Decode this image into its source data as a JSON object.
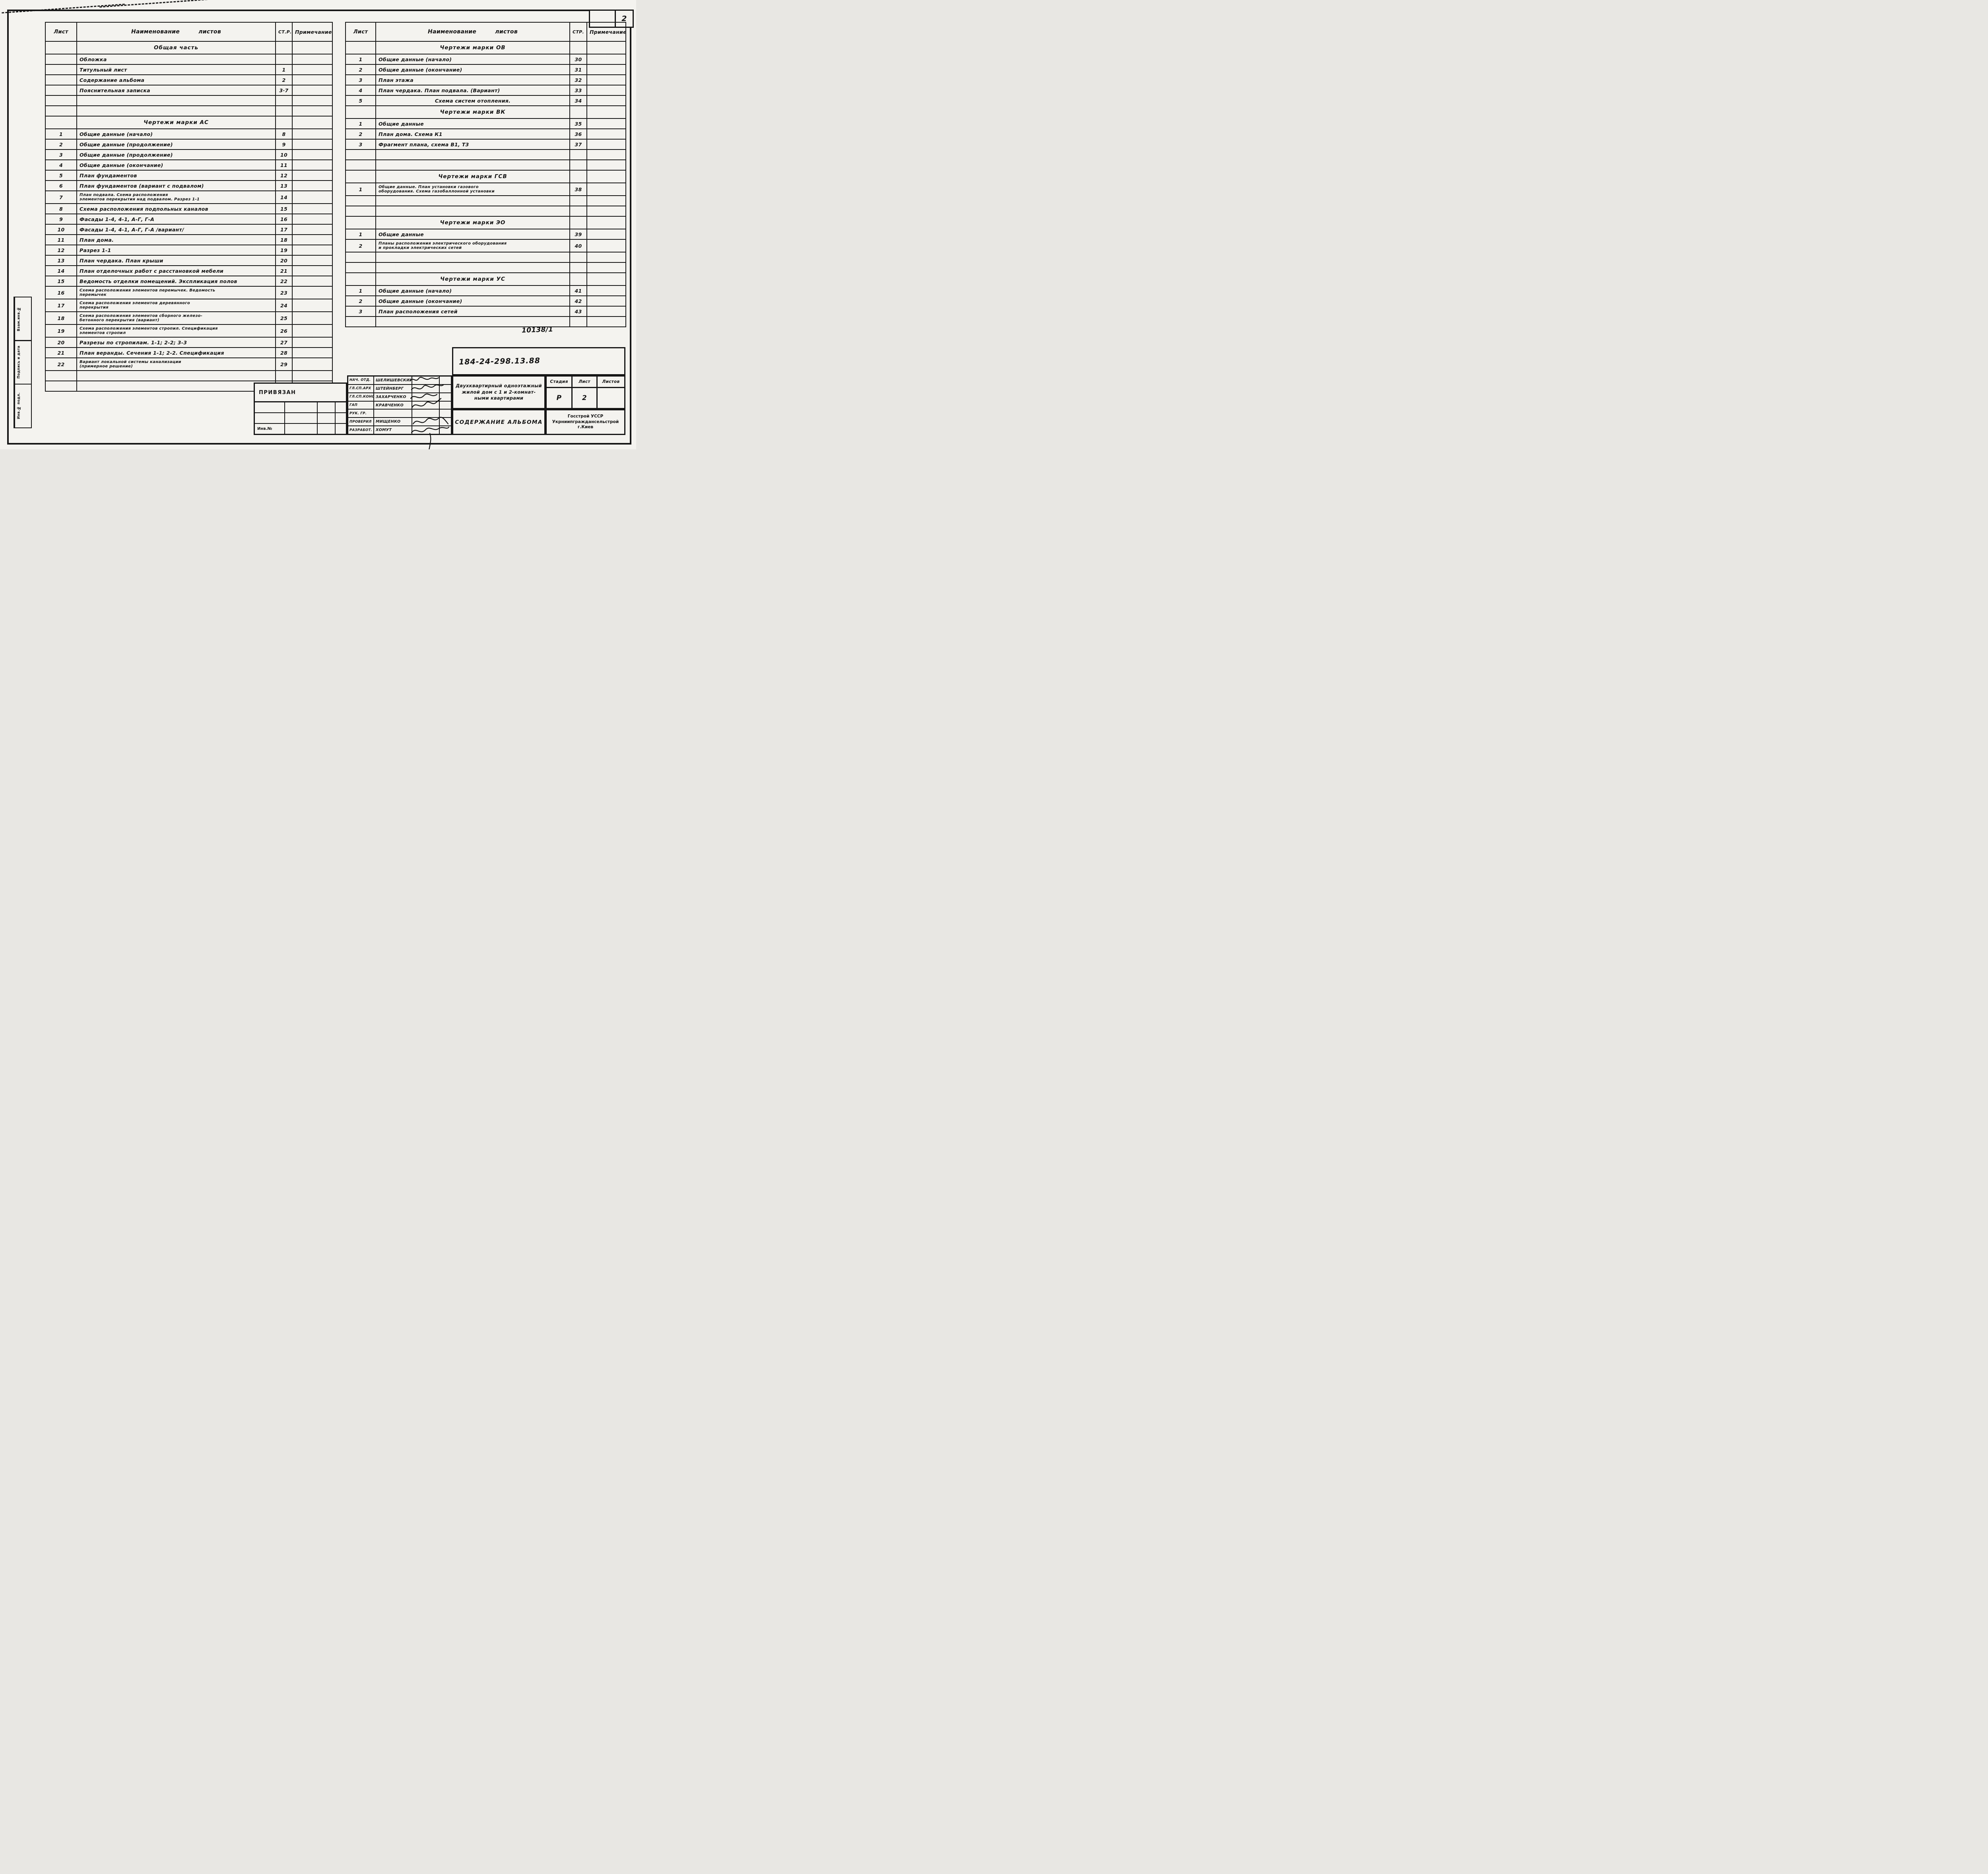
{
  "page": {
    "corner_number": "2",
    "stamp_code": "10138/1"
  },
  "left_table": {
    "header": {
      "sheet": "Лист",
      "name": "Наименование листов",
      "page": "СТ.Р.",
      "note": "Примечание"
    },
    "rows": [
      {
        "t": "sec",
        "name": "Общая часть"
      },
      {
        "t": "r",
        "num": "",
        "name": [
          "Обложка"
        ],
        "page": ""
      },
      {
        "t": "r",
        "num": "",
        "name": [
          "Титульный лист"
        ],
        "page": "1"
      },
      {
        "t": "r",
        "num": "",
        "name": [
          "Содержание альбома"
        ],
        "page": "2"
      },
      {
        "t": "r",
        "num": "",
        "name": [
          "Пояснительная записка"
        ],
        "page": "3·7"
      },
      {
        "t": "e"
      },
      {
        "t": "e"
      },
      {
        "t": "sec",
        "name": "Чертежи марки АС"
      },
      {
        "t": "r",
        "num": "1",
        "name": [
          "Общие данные (начало)"
        ],
        "page": "8"
      },
      {
        "t": "r",
        "num": "2",
        "name": [
          "Общие данные (продолжение)"
        ],
        "page": "9"
      },
      {
        "t": "r",
        "num": "3",
        "name": [
          "Общие данные (продолжение)"
        ],
        "page": "10"
      },
      {
        "t": "r",
        "num": "4",
        "name": [
          "Общие данные (окончание)"
        ],
        "page": "11"
      },
      {
        "t": "r",
        "num": "5",
        "name": [
          "План фундаментов"
        ],
        "page": "12"
      },
      {
        "t": "r",
        "num": "6",
        "name": [
          "План фундаментов (вариант с подвалом)"
        ],
        "page": "13"
      },
      {
        "t": "r2",
        "num": "7",
        "name": [
          "План подвала.  Схема расположения",
          "элементов перекрытия над подвалом. Разрез 1-1"
        ],
        "page": "14"
      },
      {
        "t": "r",
        "num": "8",
        "name": [
          "Схема расположения подпольных каналов"
        ],
        "page": "15"
      },
      {
        "t": "r",
        "num": "9",
        "name": [
          "Фасады 1-4, 4-1, А-Г, Г-А"
        ],
        "page": "16"
      },
      {
        "t": "r",
        "num": "10",
        "name": [
          "Фасады 1-4, 4-1, А-Г, Г-А  /вариант/"
        ],
        "page": "17"
      },
      {
        "t": "r",
        "num": "11",
        "name": [
          "План дома."
        ],
        "page": "18"
      },
      {
        "t": "r",
        "num": "12",
        "name": [
          "Разрез 1-1"
        ],
        "page": "19"
      },
      {
        "t": "r",
        "num": "13",
        "name": [
          "План чердака.  План крыши"
        ],
        "page": "20"
      },
      {
        "t": "r",
        "num": "14",
        "name": [
          "План отделочных работ с расстановкой мебели"
        ],
        "page": "21"
      },
      {
        "t": "r",
        "num": "15",
        "name": [
          "Ведомость отделки помещений. Экспликация полов"
        ],
        "page": "22"
      },
      {
        "t": "r2",
        "num": "16",
        "name": [
          "Схема расположения элементов перемычек. Ведомость",
          "перемычек"
        ],
        "page": "23"
      },
      {
        "t": "r2",
        "num": "17",
        "name": [
          "Схема расположения элементов деревянного",
          "перекрытия"
        ],
        "page": "24"
      },
      {
        "t": "r2",
        "num": "18",
        "name": [
          "Схема расположения элементов сборного железо-",
          "бетонного перекрытия (вариант)"
        ],
        "page": "25"
      },
      {
        "t": "r2",
        "num": "19",
        "name": [
          "Схема расположения элементов стропил. Спецификация",
          "элементов стропил"
        ],
        "page": "26"
      },
      {
        "t": "r",
        "num": "20",
        "name": [
          "Разрезы по стропилам. 1-1; 2-2; 3-3"
        ],
        "page": "27"
      },
      {
        "t": "r",
        "num": "21",
        "name": [
          "План веранды. Сечения 1-1; 2-2.   Спецификация"
        ],
        "page": "28"
      },
      {
        "t": "r2",
        "num": "22",
        "name": [
          "Вариант локальной системы канализации",
          "(примерное решение)"
        ],
        "page": "29"
      },
      {
        "t": "e"
      },
      {
        "t": "e"
      }
    ]
  },
  "right_table": {
    "header": {
      "sheet": "Лист",
      "name": "Наименование листов",
      "page": "СТР.",
      "note": "Примечание"
    },
    "rows": [
      {
        "t": "sec",
        "name": "Чертежи марки ОВ"
      },
      {
        "t": "r",
        "num": "1",
        "name": [
          "Общие данные (начало)"
        ],
        "page": "30"
      },
      {
        "t": "r",
        "num": "2",
        "name": [
          "Общие данные (окончание)"
        ],
        "page": "31"
      },
      {
        "t": "r",
        "num": "3",
        "name": [
          "План этажа"
        ],
        "page": "32"
      },
      {
        "t": "r",
        "num": "4",
        "name": [
          "План чердака. План подвала. (Вариант)"
        ],
        "page": "33"
      },
      {
        "t": "rc",
        "num": "5",
        "name": [
          "Схема систем отопления."
        ],
        "page": "34"
      },
      {
        "t": "sec",
        "name": "Чертежи марки ВК"
      },
      {
        "t": "r",
        "num": "1",
        "name": [
          "Общие данные"
        ],
        "page": "35"
      },
      {
        "t": "r",
        "num": "2",
        "name": [
          "План дома. Схема К1"
        ],
        "page": "36"
      },
      {
        "t": "r",
        "num": "3",
        "name": [
          "Фрагмент плана, схема В1, Т3"
        ],
        "page": "37"
      },
      {
        "t": "e"
      },
      {
        "t": "e"
      },
      {
        "t": "sec",
        "name": "Чертежи марки ГСВ"
      },
      {
        "t": "r2",
        "num": "1",
        "name": [
          "Общие данные. План установки газового",
          "оборудования. Схема газобаллонной установки"
        ],
        "page": "38"
      },
      {
        "t": "e"
      },
      {
        "t": "e"
      },
      {
        "t": "sec",
        "name": "Чертежи марки ЭО"
      },
      {
        "t": "r",
        "num": "1",
        "name": [
          "Общие данные"
        ],
        "page": "39"
      },
      {
        "t": "r2",
        "num": "2",
        "name": [
          "Планы расположения электрического оборудования",
          "и прокладки электрических сетей"
        ],
        "page": "40"
      },
      {
        "t": "e"
      },
      {
        "t": "e"
      },
      {
        "t": "sec",
        "name": "Чертежи марки УС"
      },
      {
        "t": "r",
        "num": "1",
        "name": [
          "Общие данные (начало)"
        ],
        "page": "41"
      },
      {
        "t": "r",
        "num": "2",
        "name": [
          "Общие данные (окончание)"
        ],
        "page": "42"
      },
      {
        "t": "r",
        "num": "3",
        "name": [
          "План расположения сетей"
        ],
        "page": "43"
      },
      {
        "t": "e"
      }
    ]
  },
  "side_stamps": {
    "vzam": "Взам.инв.№",
    "podpis": "Подпись и дата",
    "inv_podl": "Инв.№ подл."
  },
  "titleblock": {
    "privyazan_label": "ПРИВЯЗАН",
    "inv_label": "Инв.№",
    "doc_number": "184-24-298.13.88",
    "staff": [
      {
        "role": "НАЧ. ОТД.",
        "name": "ШЕЛИШЕВСКИЙ"
      },
      {
        "role": "ГЛ.СП.АРХ",
        "name": "ШТЕЙНБЕРГ"
      },
      {
        "role": "ГЛ.СП.КОНС",
        "name": "ЗАХАРЧЕНКО"
      },
      {
        "role": "ГАП",
        "name": "КРАВЧЕНКО"
      },
      {
        "role": "РУК. ГР.",
        "name": ""
      },
      {
        "role": "ПРОВЕРИЛ",
        "name": "МИЩЕНКО"
      },
      {
        "role": "РАЗРАБОТ.",
        "name": "ХОМУТ"
      }
    ],
    "project_line1": "Двухквартирный одноэтажный",
    "project_line2": "жилой дом с 1 и 2-комнат-",
    "project_line3": "ными квартирами",
    "stage_label": "Стадия",
    "stage_value": "Р",
    "sheet_label": "Лист",
    "sheet_value": "2",
    "sheets_label": "Листов",
    "sheets_value": "",
    "content_title": "СОДЕРЖАНИЕ АЛЬБОМА",
    "org_line1": "Госстрой УССР",
    "org_line2": "Укрниипграждансельстрой",
    "org_line3": "г.Киев"
  }
}
